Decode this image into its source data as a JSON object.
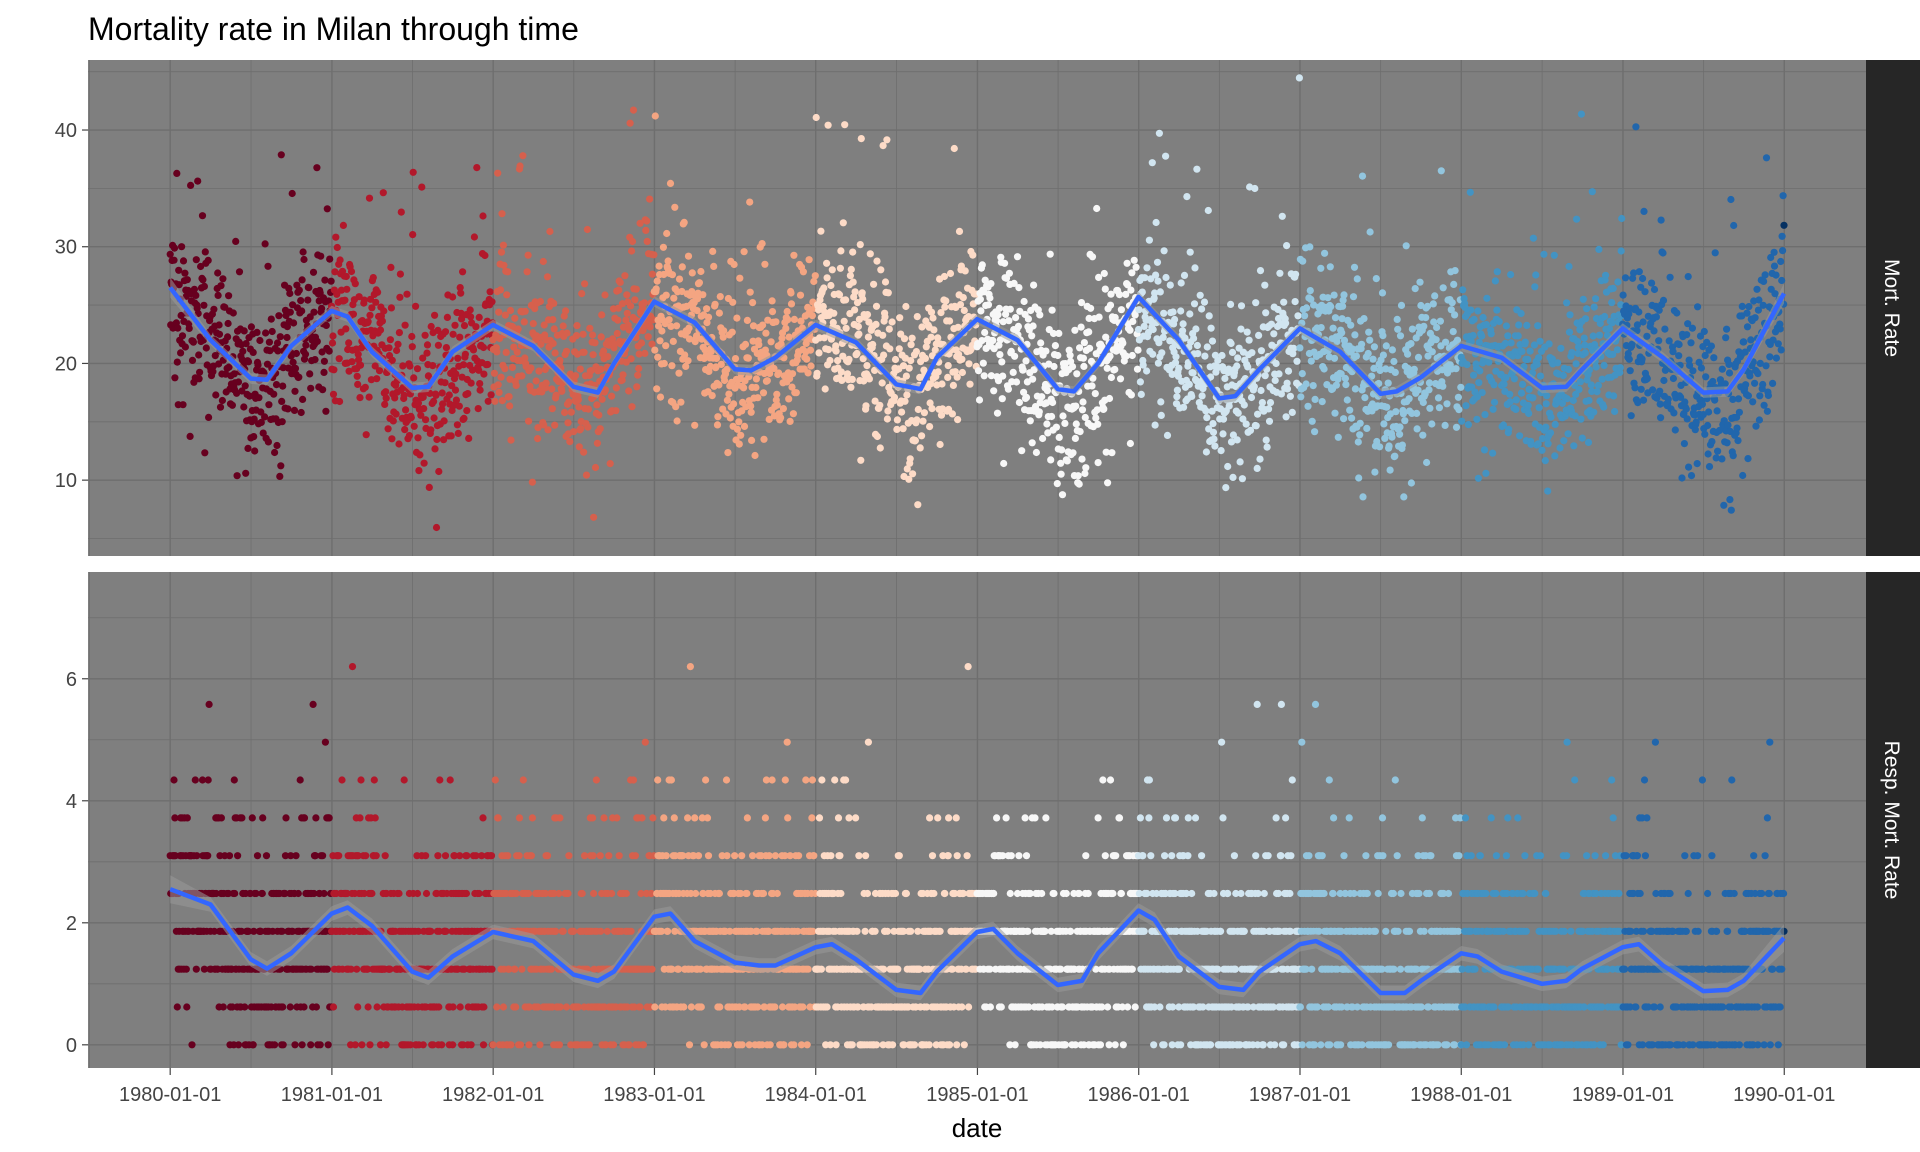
{
  "chart_data": {
    "type": "scatter",
    "title": "Mortality rate in Milan through time",
    "xlabel": "date",
    "x_ticks": [
      "1980-01-01",
      "1981-01-01",
      "1982-01-01",
      "1983-01-01",
      "1984-01-01",
      "1985-01-01",
      "1986-01-01",
      "1987-01-01",
      "1988-01-01",
      "1989-01-01",
      "1990-01-01"
    ],
    "xlim": [
      "1979-06-29",
      "1990-07-05"
    ],
    "panels": [
      {
        "strip": "Mort. Rate",
        "ylim": [
          3.5,
          46.0
        ],
        "y_ticks": [
          10,
          20,
          30,
          40
        ],
        "smooth_x_years": [
          0,
          0.25,
          0.5,
          0.6,
          0.75,
          1.0,
          1.1,
          1.25,
          1.5,
          1.6,
          1.75,
          2.0,
          2.25,
          2.5,
          2.65,
          2.75,
          3.0,
          3.25,
          3.5,
          3.6,
          3.75,
          4.0,
          4.25,
          4.5,
          4.65,
          4.75,
          5.0,
          5.25,
          5.5,
          5.6,
          5.75,
          6.0,
          6.25,
          6.5,
          6.6,
          6.75,
          7.0,
          7.25,
          7.5,
          7.6,
          7.75,
          8.0,
          8.25,
          8.5,
          8.65,
          8.75,
          9.0,
          9.25,
          9.5,
          9.65,
          9.75,
          10.0
        ],
        "smooth_y": [
          26.5,
          22.0,
          18.7,
          18.6,
          21.5,
          24.5,
          24.0,
          21.0,
          17.9,
          18.0,
          21.0,
          23.3,
          21.5,
          18.0,
          17.5,
          20.0,
          25.3,
          23.5,
          19.5,
          19.4,
          20.5,
          23.3,
          21.8,
          18.2,
          17.8,
          20.5,
          23.8,
          22.0,
          17.8,
          17.6,
          20.0,
          25.7,
          22.0,
          17.0,
          17.2,
          19.5,
          23.0,
          21.0,
          17.4,
          17.6,
          18.8,
          21.5,
          20.5,
          17.9,
          18.0,
          19.5,
          23.0,
          20.5,
          17.5,
          17.6,
          19.5,
          26.0
        ],
        "cloud_center": [
          26.0,
          22.0,
          18.5,
          18.5,
          21.5,
          24.5,
          24.5,
          21.5,
          17.5,
          17.0,
          20.0,
          23.0,
          21.5,
          18.0,
          17.0,
          20.5,
          26.0,
          23.5,
          19.5,
          19.0,
          20.0,
          23.5,
          22.0,
          18.0,
          17.0,
          20.5,
          23.5,
          22.0,
          17.5,
          16.5,
          20.0,
          25.5,
          22.0,
          17.0,
          17.0,
          19.0,
          23.0,
          21.0,
          17.0,
          16.5,
          18.5,
          21.5,
          20.5,
          17.5,
          17.0,
          19.0,
          22.5,
          20.5,
          17.0,
          17.0,
          19.5,
          25.5
        ],
        "cloud_spread": 4.0,
        "points_per_year": 340
      },
      {
        "strip": "Resp. Mort. Rate",
        "ylim": [
          -0.38,
          7.75
        ],
        "y_ticks": [
          0,
          2,
          4,
          6
        ],
        "levels": [
          0.0,
          0.62,
          1.24,
          1.86,
          2.48,
          3.1,
          3.72,
          4.34,
          4.96
        ],
        "smooth_x_years": [
          0,
          0.25,
          0.5,
          0.6,
          0.75,
          1.0,
          1.1,
          1.25,
          1.5,
          1.6,
          1.75,
          2.0,
          2.25,
          2.5,
          2.65,
          2.75,
          3.0,
          3.1,
          3.25,
          3.5,
          3.65,
          3.75,
          4.0,
          4.1,
          4.25,
          4.5,
          4.65,
          4.75,
          5.0,
          5.1,
          5.25,
          5.5,
          5.65,
          5.75,
          6.0,
          6.1,
          6.25,
          6.5,
          6.65,
          6.75,
          7.0,
          7.1,
          7.25,
          7.5,
          7.65,
          7.75,
          8.0,
          8.1,
          8.25,
          8.5,
          8.65,
          8.75,
          9.0,
          9.1,
          9.25,
          9.5,
          9.65,
          9.75,
          10.0
        ],
        "smooth_y": [
          2.55,
          2.3,
          1.4,
          1.25,
          1.5,
          2.15,
          2.25,
          1.95,
          1.2,
          1.1,
          1.45,
          1.85,
          1.7,
          1.15,
          1.05,
          1.2,
          2.1,
          2.15,
          1.7,
          1.35,
          1.3,
          1.3,
          1.6,
          1.65,
          1.4,
          0.9,
          0.85,
          1.2,
          1.85,
          1.9,
          1.5,
          0.98,
          1.05,
          1.5,
          2.2,
          2.05,
          1.45,
          0.95,
          0.9,
          1.2,
          1.65,
          1.7,
          1.5,
          0.85,
          0.85,
          1.05,
          1.5,
          1.45,
          1.2,
          1.0,
          1.05,
          1.25,
          1.6,
          1.65,
          1.3,
          0.88,
          0.9,
          1.05,
          1.75
        ],
        "points_per_year": 340
      }
    ],
    "year_colors": [
      "#67001F",
      "#B2182B",
      "#D6604D",
      "#F4A582",
      "#FDDBC7",
      "#F7F7F7",
      "#D1E5F0",
      "#92C5DE",
      "#4393C3",
      "#2166AC",
      "#053061"
    ],
    "panel_background": "#7F7F7F",
    "gridline_color": "#6E6E6E",
    "smooth_color": "#3366FF",
    "ribbon_color": "#999999",
    "strip_background": "#262626"
  }
}
